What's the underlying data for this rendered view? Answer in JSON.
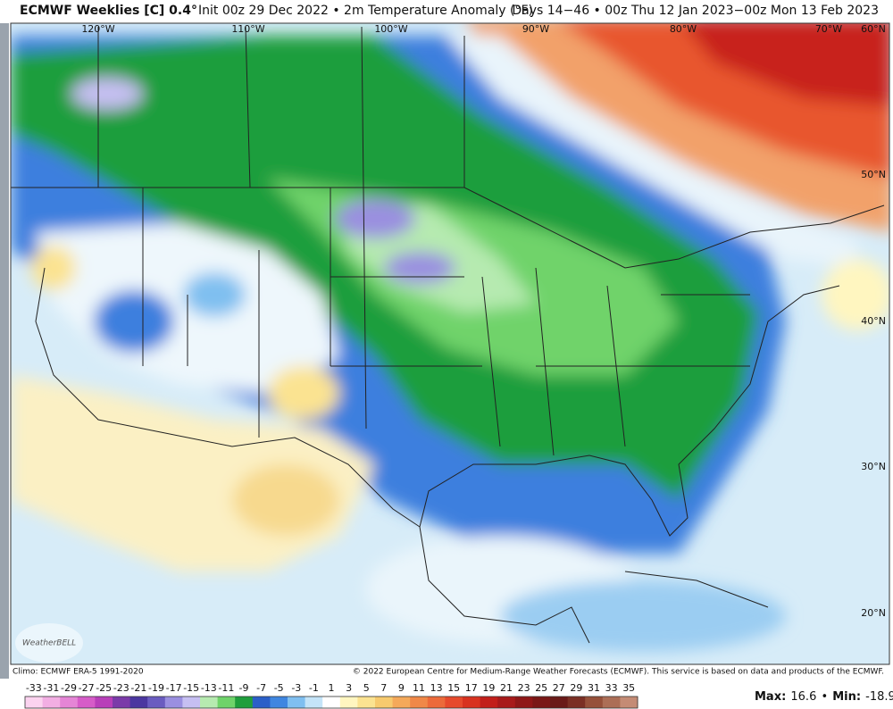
{
  "header": {
    "title": "ECMWF Weeklies [C] 0.4°",
    "subtitle": "Init 00z 29 Dec 2022 • 2m Temperature Anomaly (°F)",
    "valid": "Days 14−46 • 00z Thu 12 Jan 2023−00z Mon 13 Feb 2023"
  },
  "map": {
    "lon_labels": [
      "120°W",
      "110°W",
      "100°W",
      "90°W",
      "80°W",
      "70°W",
      "60°N"
    ],
    "lat_labels": [
      "50°N",
      "40°N",
      "30°N",
      "20°N"
    ],
    "logo": "WeatherBELL"
  },
  "footer": {
    "climo": "Climo: ECMWF ERA-5 1991-2020",
    "credit": "© 2022 European Centre for Medium-Range Weather Forecasts (ECMWF). This service is based on data and products of the ECMWF."
  },
  "colorbar": {
    "labels": [
      -33,
      -31,
      -29,
      -27,
      -25,
      -23,
      -21,
      -19,
      -17,
      -15,
      -13,
      -11,
      -9,
      -7,
      -5,
      -3,
      -1,
      1,
      3,
      5,
      7,
      9,
      11,
      13,
      15,
      17,
      19,
      21,
      23,
      25,
      27,
      29,
      31,
      33,
      35
    ],
    "colors": [
      "#fbd3ef",
      "#f2aee3",
      "#e585d6",
      "#d65cc8",
      "#b83fb9",
      "#7b3aa9",
      "#4b37a0",
      "#6a5cc0",
      "#9a8fe0",
      "#c6bff2",
      "#b6eab0",
      "#6fd36a",
      "#1f9e3c",
      "#2a5fc8",
      "#3f86e0",
      "#7fbff0",
      "#c4e4f8",
      "#ffffff",
      "#fff6c0",
      "#fbe391",
      "#f7ca6e",
      "#f4a95a",
      "#f08848",
      "#ec6a3a",
      "#e64a2c",
      "#d8321f",
      "#c21f1a",
      "#a81a1a",
      "#8f1717",
      "#7a1716",
      "#6a1a18",
      "#7b2f24",
      "#96503a",
      "#ac6e56",
      "#c48b75"
    ]
  },
  "stats": {
    "max_label": "Max:",
    "max": 16.6,
    "separator": "•",
    "min_label": "Min:",
    "min": -18.9
  }
}
